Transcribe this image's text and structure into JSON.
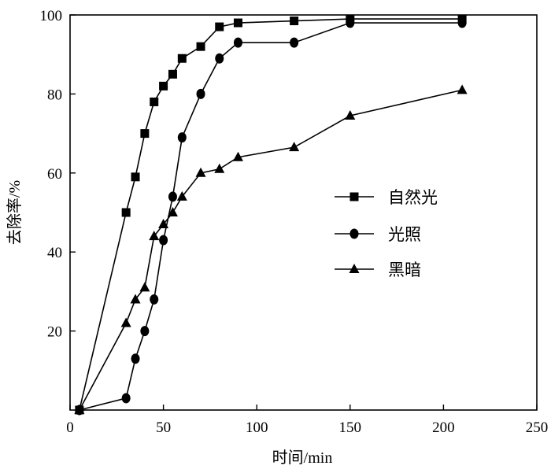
{
  "chart_data": {
    "type": "line",
    "xlabel": "时间/min",
    "ylabel": "去除率/%",
    "xlim": [
      0,
      250
    ],
    "ylim": [
      0,
      100
    ],
    "xticks": [
      0,
      50,
      100,
      150,
      200,
      250
    ],
    "yticks": [
      20,
      40,
      60,
      80,
      100
    ],
    "grid": false,
    "legend_position": "center-right",
    "series": [
      {
        "name": "自然光",
        "marker": "square",
        "points": [
          [
            5,
            0
          ],
          [
            30,
            50
          ],
          [
            35,
            59
          ],
          [
            40,
            70
          ],
          [
            45,
            78
          ],
          [
            50,
            82
          ],
          [
            55,
            85
          ],
          [
            60,
            89
          ],
          [
            70,
            92
          ],
          [
            80,
            97
          ],
          [
            90,
            98
          ],
          [
            120,
            98.5
          ],
          [
            150,
            99
          ],
          [
            210,
            99
          ]
        ]
      },
      {
        "name": "光照",
        "marker": "circle",
        "points": [
          [
            5,
            0
          ],
          [
            30,
            3
          ],
          [
            35,
            13
          ],
          [
            40,
            20
          ],
          [
            45,
            28
          ],
          [
            50,
            43
          ],
          [
            55,
            54
          ],
          [
            60,
            69
          ],
          [
            70,
            80
          ],
          [
            80,
            89
          ],
          [
            90,
            93
          ],
          [
            120,
            93
          ],
          [
            150,
            98
          ],
          [
            210,
            98
          ]
        ]
      },
      {
        "name": "黑暗",
        "marker": "triangle",
        "points": [
          [
            5,
            0
          ],
          [
            30,
            22
          ],
          [
            35,
            28
          ],
          [
            40,
            31
          ],
          [
            45,
            44
          ],
          [
            50,
            47
          ],
          [
            55,
            50
          ],
          [
            60,
            54
          ],
          [
            70,
            60
          ],
          [
            80,
            61
          ],
          [
            90,
            64
          ],
          [
            120,
            66.5
          ],
          [
            150,
            74.5
          ],
          [
            210,
            81
          ]
        ]
      }
    ]
  }
}
